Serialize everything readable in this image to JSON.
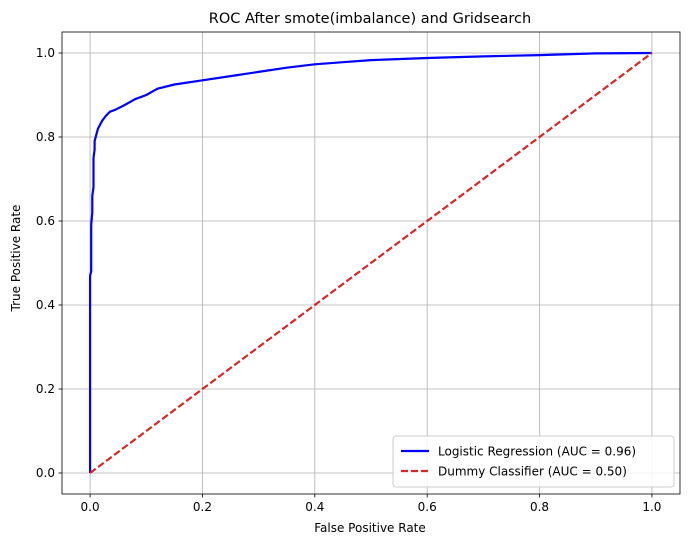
{
  "chart_data": {
    "type": "line",
    "title": "ROC After smote(imbalance) and Gridsearch",
    "xlabel": "False Positive Rate",
    "ylabel": "True Positive Rate",
    "xlim": [
      -0.05,
      1.05
    ],
    "ylim": [
      -0.05,
      1.05
    ],
    "xticks": [
      0.0,
      0.2,
      0.4,
      0.6,
      0.8,
      1.0
    ],
    "yticks": [
      0.0,
      0.2,
      0.4,
      0.6,
      0.8,
      1.0
    ],
    "xtick_labels": [
      "0.0",
      "0.2",
      "0.4",
      "0.6",
      "0.8",
      "1.0"
    ],
    "ytick_labels": [
      "0.0",
      "0.2",
      "0.4",
      "0.6",
      "0.8",
      "1.0"
    ],
    "grid": true,
    "legend_position": "lower-right",
    "series": [
      {
        "name": "Logistic Regression (AUC = 0.96)",
        "color": "#0000ff",
        "style": "solid",
        "x": [
          0.0,
          0.0,
          0.002,
          0.002,
          0.004,
          0.004,
          0.006,
          0.006,
          0.008,
          0.008,
          0.012,
          0.014,
          0.018,
          0.022,
          0.028,
          0.035,
          0.045,
          0.06,
          0.08,
          0.1,
          0.12,
          0.15,
          0.2,
          0.25,
          0.3,
          0.35,
          0.4,
          0.45,
          0.5,
          0.6,
          0.7,
          0.8,
          0.9,
          1.0
        ],
        "y": [
          0.0,
          0.47,
          0.48,
          0.59,
          0.62,
          0.66,
          0.68,
          0.75,
          0.77,
          0.79,
          0.81,
          0.82,
          0.83,
          0.84,
          0.85,
          0.86,
          0.865,
          0.875,
          0.89,
          0.9,
          0.915,
          0.925,
          0.935,
          0.945,
          0.955,
          0.965,
          0.973,
          0.978,
          0.983,
          0.988,
          0.992,
          0.995,
          0.999,
          1.0
        ]
      },
      {
        "name": "Dummy Classifier (AUC = 0.50)",
        "color": "#d62728",
        "style": "dashed",
        "x": [
          0.0,
          1.0
        ],
        "y": [
          0.0,
          1.0
        ]
      }
    ]
  }
}
